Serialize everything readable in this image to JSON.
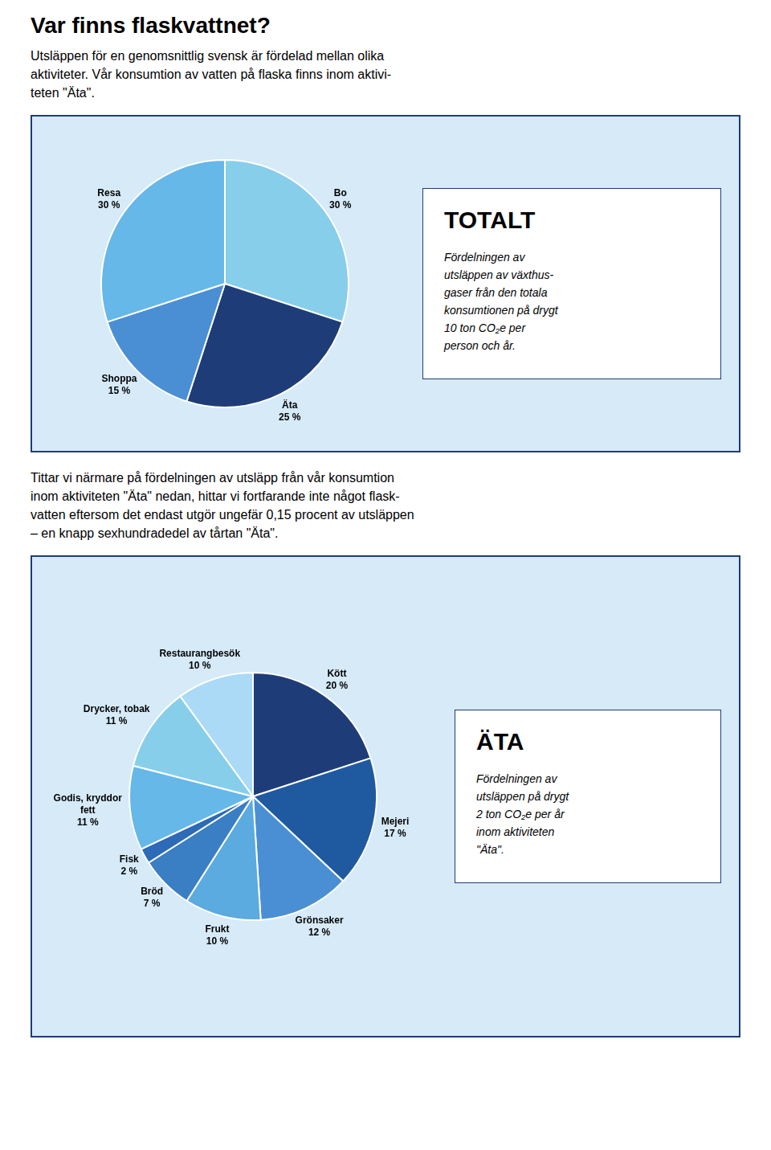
{
  "chart_data": [
    {
      "type": "pie",
      "title": "Var finns flaskvattnet?",
      "subtitle": [
        "Utsläppen för en genomsnittlig svensk är fördelad mellan olika",
        "aktiviteter. Vår konsumtion av vatten på flaska finns inom aktivi-",
        "teten \"Äta\"."
      ],
      "categories": [
        "Bo",
        "Äta",
        "Shoppa",
        "Resa"
      ],
      "values": [
        30,
        25,
        15,
        30
      ],
      "value_labels": [
        "30 %",
        "25 %",
        "15 %",
        "30 %"
      ],
      "colors": [
        "#87CEEB",
        "#1e3d78",
        "#4a8fd4",
        "#65b8e8"
      ],
      "data_labels": true,
      "annotations": [
        "TOTALT",
        "Fördelningen av",
        "utsläppen av växthus-",
        "gaser från den totala",
        "konsumtionen på drygt",
        "10 ton CO₂e per",
        "person och år."
      ]
    },
    {
      "type": "pie",
      "subtitle": [
        "Tittar vi närmare på fördelningen av utsläpp från vår konsumtion",
        "inom aktiviteten \"Äta\" nedan, hittar vi fortfarande inte något flask-",
        "vatten eftersom det endast utgör ungefär 0,15 procent av utsläppen",
        "– en knapp sexhundradedel av tårtan \"Äta\"."
      ],
      "categories": [
        "Kött",
        "Mejeri",
        "Grönsaker",
        "Frukt",
        "Bröd",
        "Fisk",
        "Godis, kryddor fett",
        "Drycker, tobak",
        "Restaurangbesök"
      ],
      "values": [
        20,
        17,
        12,
        10,
        7,
        2,
        11,
        11,
        10
      ],
      "value_labels": [
        "20 %",
        "17 %",
        "12 %",
        "10 %",
        "7 %",
        "2 %",
        "11 %",
        "11 %",
        "10 %"
      ],
      "colors": [
        "#1e3d78",
        "#1f5aa0",
        "#4a8fd4",
        "#5baae0",
        "#3a7ec4",
        "#2d6ab8",
        "#65b8e8",
        "#87CEEB",
        "#aadaf5"
      ],
      "data_labels": true,
      "annotations": [
        "ÄTA",
        "Fördelningen av",
        "utsläppen på drygt",
        "2 ton CO₂e per år",
        "inom aktiviteten",
        "\"Äta\"."
      ]
    }
  ]
}
